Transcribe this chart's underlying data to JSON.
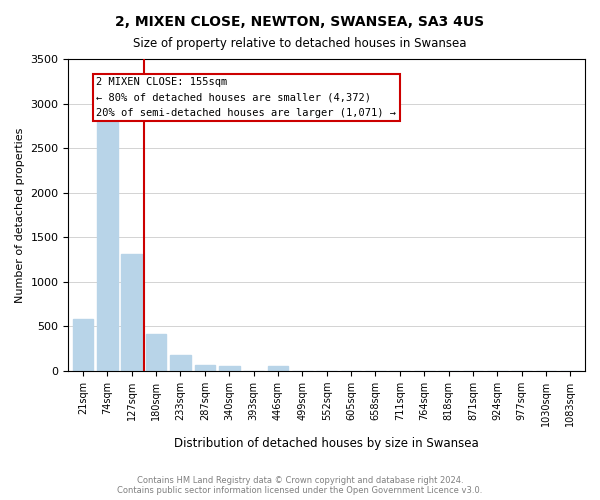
{
  "title": "2, MIXEN CLOSE, NEWTON, SWANSEA, SA3 4US",
  "subtitle": "Size of property relative to detached houses in Swansea",
  "xlabel": "Distribution of detached houses by size in Swansea",
  "ylabel": "Number of detached properties",
  "categories": [
    "21sqm",
    "74sqm",
    "127sqm",
    "180sqm",
    "233sqm",
    "287sqm",
    "340sqm",
    "393sqm",
    "446sqm",
    "499sqm",
    "552sqm",
    "605sqm",
    "658sqm",
    "711sqm",
    "764sqm",
    "818sqm",
    "871sqm",
    "924sqm",
    "977sqm",
    "1030sqm",
    "1083sqm"
  ],
  "values": [
    580,
    2900,
    1310,
    415,
    175,
    70,
    50,
    0,
    50,
    0,
    0,
    0,
    0,
    0,
    0,
    0,
    0,
    0,
    0,
    0,
    0
  ],
  "bar_color": "#b8d4e8",
  "vline_color": "#cc0000",
  "ylim": [
    0,
    3500
  ],
  "annotation_title": "2 MIXEN CLOSE: 155sqm",
  "annotation_line1": "← 80% of detached houses are smaller (4,372)",
  "annotation_line2": "20% of semi-detached houses are larger (1,071) →",
  "annotation_box_color": "#cc0000",
  "footer_line1": "Contains HM Land Registry data © Crown copyright and database right 2024.",
  "footer_line2": "Contains public sector information licensed under the Open Government Licence v3.0."
}
